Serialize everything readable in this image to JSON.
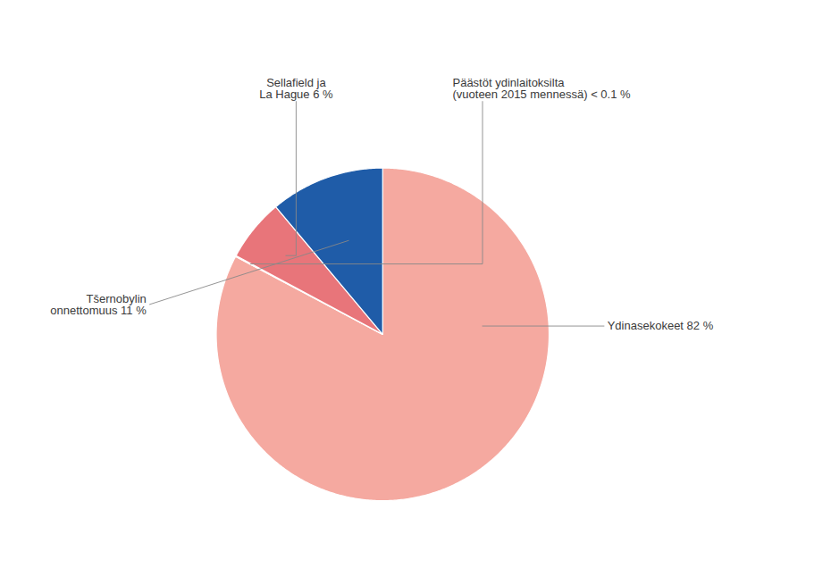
{
  "chart_data": {
    "type": "pie",
    "categories": [
      "Ydinasekokeet 82 %",
      "Päästöt ydinlaitoksilta\n(vuoteen 2015 mennessä) < 0.1 %",
      "Sellafield ja\nLa Hague 6 %",
      "Tšernobylin\nonnettomuus 11 %"
    ],
    "values": [
      82,
      0.1,
      6,
      11
    ],
    "colors": [
      "#f5a9a0",
      "#f5a9a0",
      "#e8757a",
      "#1f5ca8"
    ]
  }
}
